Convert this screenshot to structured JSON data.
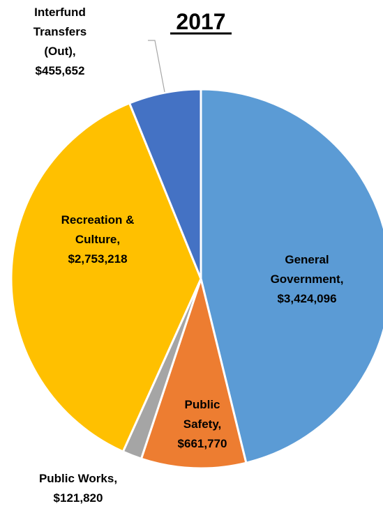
{
  "chart_data": {
    "type": "pie",
    "title": "2017",
    "slices": [
      {
        "lines": [
          "General",
          "Government,",
          "$3,424,096"
        ],
        "value": 3424096,
        "color": "#5B9BD5"
      },
      {
        "lines": [
          "Public",
          "Safety,",
          "$661,770"
        ],
        "value": 661770,
        "color": "#ED7D31"
      },
      {
        "lines": [
          "Public Works,",
          "$121,820"
        ],
        "value": 121820,
        "color": "#A5A5A5"
      },
      {
        "lines": [
          "Recreation &",
          "Culture,",
          "$2,753,218"
        ],
        "value": 2753218,
        "color": "#FFC000"
      },
      {
        "lines": [
          "Interfund",
          "Transfers",
          "(Out),",
          "$455,652"
        ],
        "value": 455652,
        "color": "#4472C4"
      }
    ],
    "start": "12 o'clock",
    "direction": "clockwise",
    "legend": "none",
    "data_labels": true
  }
}
